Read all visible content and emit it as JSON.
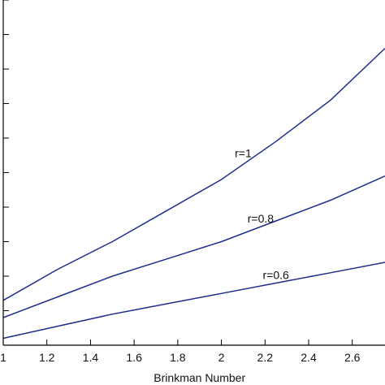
{
  "chart_data": {
    "type": "line",
    "xlabel": "Brinkman Number",
    "ylabel": "",
    "xlim": [
      1,
      2.75
    ],
    "ylim": [
      0,
      10
    ],
    "x_ticks": [
      1,
      1.2,
      1.4,
      1.6,
      1.8,
      2,
      2.2,
      2.4,
      2.6
    ],
    "x_tick_labels": [
      "1",
      "1.2",
      "1.4",
      "1.6",
      "1.8",
      "2",
      "2.2",
      "2.4",
      "2.6"
    ],
    "y_ticks": [
      0,
      1,
      2,
      3,
      4,
      5,
      6,
      7,
      8,
      9,
      10
    ],
    "grid": false,
    "series": [
      {
        "name": "r=1",
        "x": [
          1,
          1.25,
          1.5,
          1.75,
          2,
          2.25,
          2.5,
          2.75
        ],
        "y": [
          1.3,
          2.2,
          3.0,
          3.9,
          4.8,
          5.9,
          7.1,
          8.6
        ]
      },
      {
        "name": "r=0.8",
        "x": [
          1,
          1.25,
          1.5,
          1.75,
          2,
          2.25,
          2.5,
          2.75
        ],
        "y": [
          0.8,
          1.4,
          2.0,
          2.5,
          3.0,
          3.6,
          4.2,
          4.9
        ]
      },
      {
        "name": "r=0.6",
        "x": [
          1,
          1.25,
          1.5,
          1.75,
          2,
          2.25,
          2.5,
          2.75
        ],
        "y": [
          0.2,
          0.55,
          0.9,
          1.2,
          1.5,
          1.8,
          2.1,
          2.4
        ]
      }
    ],
    "line_color": "#1f2d8c"
  }
}
